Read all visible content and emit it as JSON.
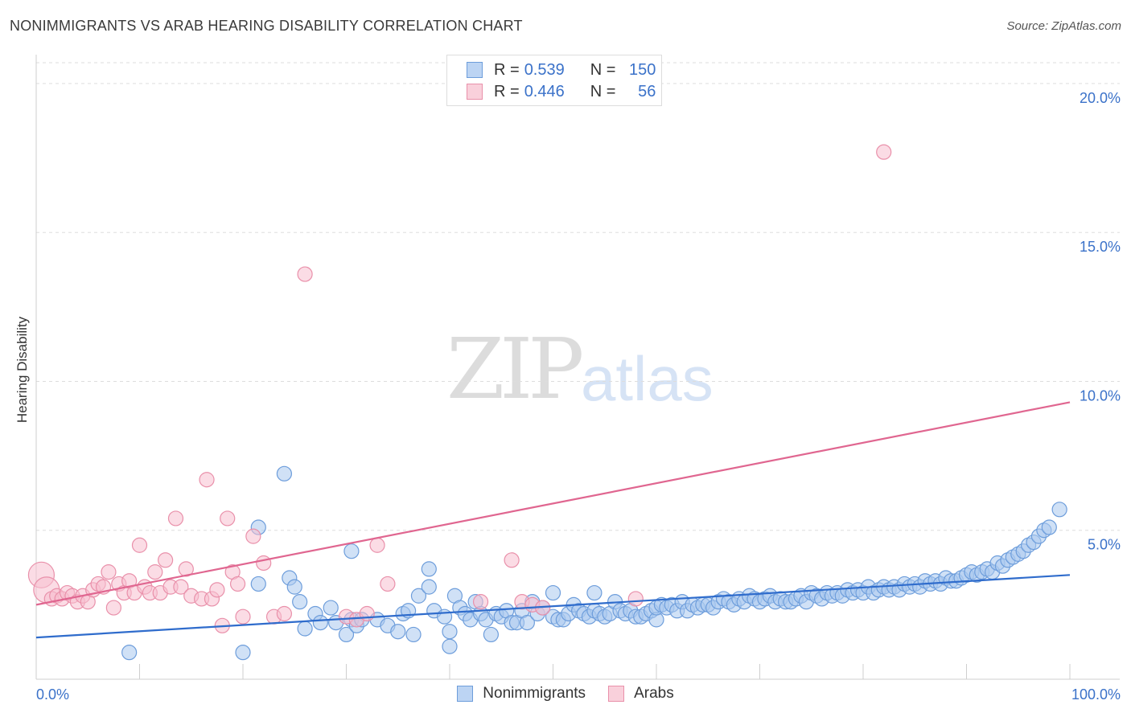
{
  "header": {
    "title": "NONIMMIGRANTS VS ARAB HEARING DISABILITY CORRELATION CHART",
    "source": "Source: ZipAtlas.com"
  },
  "watermark": {
    "zip": "ZIP",
    "atlas": "atlas"
  },
  "legend_top": {
    "rows": [
      {
        "r_label": "R =",
        "r_value": "0.539",
        "n_label": "N =",
        "n_value": "150"
      },
      {
        "r_label": "R =",
        "r_value": "0.446",
        "n_label": "N =",
        "n_value": "56"
      }
    ]
  },
  "legend_bottom": {
    "items": [
      "Nonimmigrants",
      "Arabs"
    ]
  },
  "colors": {
    "blue_fill": "#a9c8ef",
    "blue_stroke": "#6d9ddb",
    "blue_line": "#2f6ccc",
    "pink_fill": "#f7c0cf",
    "pink_stroke": "#e990aa",
    "pink_line": "#e06690",
    "tick_label": "#3b72c9",
    "grid": "#dddddd"
  },
  "chart_data": {
    "type": "scatter",
    "title": "NONIMMIGRANTS VS ARAB HEARING DISABILITY CORRELATION CHART",
    "xlabel": "",
    "ylabel": "Hearing Disability",
    "xlim": [
      0,
      100
    ],
    "ylim": [
      0,
      20.7
    ],
    "x_tick_labels": [
      "0.0%",
      "100.0%"
    ],
    "y_ticks": [
      5,
      10,
      15,
      20
    ],
    "y_tick_labels": [
      "5.0%",
      "10.0%",
      "15.0%",
      "20.0%"
    ],
    "grid": true,
    "legend_placement": "bottom",
    "series": [
      {
        "name": "Nonimmigrants",
        "color": "#6d9ddb",
        "trendline": [
          [
            0,
            1.4
          ],
          [
            100,
            3.5
          ]
        ],
        "points": [
          [
            9,
            0.9
          ],
          [
            20,
            0.9
          ],
          [
            24,
            6.9
          ],
          [
            21.5,
            5.1
          ],
          [
            21.5,
            3.2
          ],
          [
            24.5,
            3.4
          ],
          [
            25,
            3.1
          ],
          [
            25.5,
            2.6
          ],
          [
            26,
            1.7
          ],
          [
            27,
            2.2
          ],
          [
            27.5,
            1.9
          ],
          [
            28.5,
            2.4
          ],
          [
            29,
            1.9
          ],
          [
            30,
            1.5
          ],
          [
            30.5,
            2.0
          ],
          [
            30.5,
            4.3
          ],
          [
            31,
            1.8
          ],
          [
            31.5,
            2.0
          ],
          [
            33,
            2.0
          ],
          [
            34,
            1.8
          ],
          [
            35,
            1.6
          ],
          [
            35.5,
            2.2
          ],
          [
            36,
            2.3
          ],
          [
            36.5,
            1.5
          ],
          [
            37,
            2.8
          ],
          [
            38,
            3.1
          ],
          [
            38,
            3.7
          ],
          [
            38.5,
            2.3
          ],
          [
            39.5,
            2.1
          ],
          [
            40,
            1.6
          ],
          [
            40,
            1.1
          ],
          [
            40.5,
            2.8
          ],
          [
            41,
            2.4
          ],
          [
            41.5,
            2.2
          ],
          [
            42,
            2.0
          ],
          [
            42.5,
            2.6
          ],
          [
            43,
            2.2
          ],
          [
            43.5,
            2.0
          ],
          [
            44,
            1.5
          ],
          [
            44.5,
            2.2
          ],
          [
            45,
            2.1
          ],
          [
            45.5,
            2.3
          ],
          [
            46,
            1.9
          ],
          [
            46.5,
            1.9
          ],
          [
            47,
            2.3
          ],
          [
            47.5,
            1.9
          ],
          [
            48,
            2.6
          ],
          [
            48.5,
            2.2
          ],
          [
            49,
            2.4
          ],
          [
            50,
            2.9
          ],
          [
            50,
            2.1
          ],
          [
            50.5,
            2.0
          ],
          [
            51,
            2.0
          ],
          [
            51.5,
            2.2
          ],
          [
            52,
            2.5
          ],
          [
            52.5,
            2.3
          ],
          [
            53,
            2.2
          ],
          [
            53.5,
            2.1
          ],
          [
            54,
            2.9
          ],
          [
            54,
            2.3
          ],
          [
            54.5,
            2.2
          ],
          [
            55,
            2.1
          ],
          [
            55.5,
            2.2
          ],
          [
            56,
            2.6
          ],
          [
            56.5,
            2.3
          ],
          [
            57,
            2.2
          ],
          [
            57.5,
            2.3
          ],
          [
            58,
            2.1
          ],
          [
            58.5,
            2.1
          ],
          [
            59,
            2.2
          ],
          [
            59.5,
            2.3
          ],
          [
            60,
            2.0
          ],
          [
            60,
            2.4
          ],
          [
            60.5,
            2.5
          ],
          [
            61,
            2.4
          ],
          [
            61.5,
            2.5
          ],
          [
            62,
            2.3
          ],
          [
            62.5,
            2.6
          ],
          [
            63,
            2.3
          ],
          [
            63.5,
            2.5
          ],
          [
            64,
            2.4
          ],
          [
            64.5,
            2.5
          ],
          [
            65,
            2.5
          ],
          [
            65.5,
            2.4
          ],
          [
            66,
            2.6
          ],
          [
            66.5,
            2.7
          ],
          [
            67,
            2.6
          ],
          [
            67.5,
            2.5
          ],
          [
            68,
            2.7
          ],
          [
            68.5,
            2.6
          ],
          [
            69,
            2.8
          ],
          [
            69.5,
            2.7
          ],
          [
            70,
            2.6
          ],
          [
            70.5,
            2.7
          ],
          [
            71,
            2.8
          ],
          [
            71.5,
            2.6
          ],
          [
            72,
            2.7
          ],
          [
            72.5,
            2.6
          ],
          [
            73,
            2.6
          ],
          [
            73.5,
            2.7
          ],
          [
            74,
            2.8
          ],
          [
            74.5,
            2.6
          ],
          [
            75,
            2.9
          ],
          [
            75.5,
            2.8
          ],
          [
            76,
            2.7
          ],
          [
            76.5,
            2.9
          ],
          [
            77,
            2.8
          ],
          [
            77.5,
            2.9
          ],
          [
            78,
            2.8
          ],
          [
            78.5,
            3.0
          ],
          [
            79,
            2.9
          ],
          [
            79.5,
            3.0
          ],
          [
            80,
            2.9
          ],
          [
            80.5,
            3.1
          ],
          [
            81,
            2.9
          ],
          [
            81.5,
            3.0
          ],
          [
            82,
            3.1
          ],
          [
            82.5,
            3.0
          ],
          [
            83,
            3.1
          ],
          [
            83.5,
            3.0
          ],
          [
            84,
            3.2
          ],
          [
            84.5,
            3.1
          ],
          [
            85,
            3.2
          ],
          [
            85.5,
            3.1
          ],
          [
            86,
            3.3
          ],
          [
            86.5,
            3.2
          ],
          [
            87,
            3.3
          ],
          [
            87.5,
            3.2
          ],
          [
            88,
            3.4
          ],
          [
            88.5,
            3.3
          ],
          [
            89,
            3.3
          ],
          [
            89.5,
            3.4
          ],
          [
            90,
            3.5
          ],
          [
            90.5,
            3.6
          ],
          [
            91,
            3.5
          ],
          [
            91.5,
            3.6
          ],
          [
            92,
            3.7
          ],
          [
            92.5,
            3.6
          ],
          [
            93,
            3.9
          ],
          [
            93.5,
            3.8
          ],
          [
            94,
            4.0
          ],
          [
            94.5,
            4.1
          ],
          [
            95,
            4.2
          ],
          [
            95.5,
            4.3
          ],
          [
            96,
            4.5
          ],
          [
            96.5,
            4.6
          ],
          [
            97,
            4.8
          ],
          [
            97.5,
            5.0
          ],
          [
            98,
            5.1
          ],
          [
            99,
            5.7
          ]
        ]
      },
      {
        "name": "Arabs",
        "color": "#e990aa",
        "trendline": [
          [
            0,
            2.5
          ],
          [
            100,
            9.3
          ]
        ],
        "points": [
          [
            0.5,
            3.5
          ],
          [
            1,
            3.0
          ],
          [
            1.5,
            2.7
          ],
          [
            2,
            2.8
          ],
          [
            2.5,
            2.7
          ],
          [
            3,
            2.9
          ],
          [
            3.5,
            2.8
          ],
          [
            4,
            2.6
          ],
          [
            4.5,
            2.8
          ],
          [
            5,
            2.6
          ],
          [
            5.5,
            3.0
          ],
          [
            6,
            3.2
          ],
          [
            6.5,
            3.1
          ],
          [
            7,
            3.6
          ],
          [
            7.5,
            2.4
          ],
          [
            8,
            3.2
          ],
          [
            8.5,
            2.9
          ],
          [
            9,
            3.3
          ],
          [
            9.5,
            2.9
          ],
          [
            10,
            4.5
          ],
          [
            10.5,
            3.1
          ],
          [
            11,
            2.9
          ],
          [
            11.5,
            3.6
          ],
          [
            12,
            2.9
          ],
          [
            12.5,
            4.0
          ],
          [
            13,
            3.1
          ],
          [
            13.5,
            5.4
          ],
          [
            14,
            3.1
          ],
          [
            14.5,
            3.7
          ],
          [
            15,
            2.8
          ],
          [
            16,
            2.7
          ],
          [
            16.5,
            6.7
          ],
          [
            17,
            2.7
          ],
          [
            17.5,
            3.0
          ],
          [
            18,
            1.8
          ],
          [
            18.5,
            5.4
          ],
          [
            19,
            3.6
          ],
          [
            19.5,
            3.2
          ],
          [
            20,
            2.1
          ],
          [
            21,
            4.8
          ],
          [
            22,
            3.9
          ],
          [
            23,
            2.1
          ],
          [
            24,
            2.2
          ],
          [
            26,
            13.6
          ],
          [
            30,
            2.1
          ],
          [
            31,
            2.0
          ],
          [
            32,
            2.2
          ],
          [
            33,
            4.5
          ],
          [
            34,
            3.2
          ],
          [
            43,
            2.6
          ],
          [
            46,
            4.0
          ],
          [
            47,
            2.6
          ],
          [
            48,
            2.5
          ],
          [
            49,
            2.4
          ],
          [
            58,
            2.7
          ],
          [
            82,
            17.7
          ]
        ]
      }
    ]
  }
}
